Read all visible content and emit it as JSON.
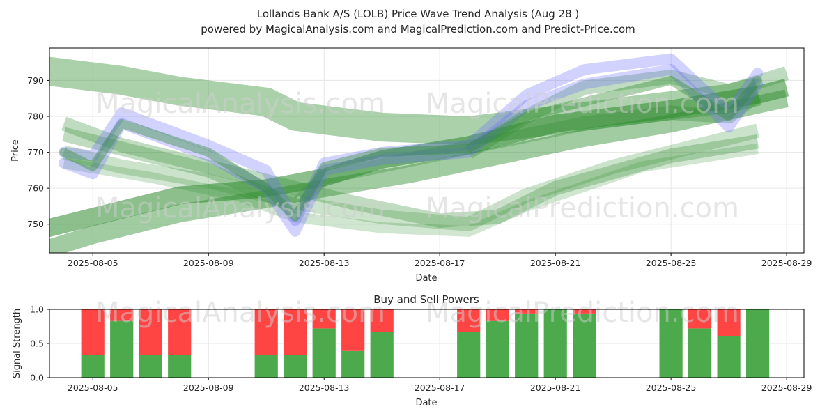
{
  "title_line1": "Lollands Bank A/S (LOLB) Price Wave Trend Analysis (Aug 28 )",
  "title_line2": "powered by MagicalAnalysis.com and MagicalPrediction.com and Predict-Price.com",
  "watermarks": [
    "MagicalAnalysis.com",
    "MagicalPrediction.com"
  ],
  "colors": {
    "buy": "#4caa4c",
    "sell": "#ff4444",
    "wave_green": "#2e8b2e",
    "wave_blue": "#6a6aff",
    "grid": "#e6e6e6"
  },
  "chart_data": [
    {
      "type": "area",
      "name": "price-wave",
      "xlabel": "Date",
      "ylabel": "Price",
      "xlim": [
        "2025-08-03.5",
        "2025-08-29.6"
      ],
      "xticks": [
        "2025-08-05",
        "2025-08-09",
        "2025-08-13",
        "2025-08-17",
        "2025-08-21",
        "2025-08-25",
        "2025-08-29"
      ],
      "ylim": [
        742,
        799
      ],
      "yticks": [
        750,
        760,
        770,
        780,
        790
      ],
      "grid": true,
      "bands": [
        {
          "color": "green",
          "x": [
            "2025-08-03",
            "2025-08-05",
            "2025-08-08",
            "2025-08-11",
            "2025-08-13",
            "2025-08-15",
            "2025-08-18",
            "2025-08-21",
            "2025-08-25",
            "2025-08-28",
            "2025-08-29"
          ],
          "y": [
            748,
            752,
            758,
            760,
            763,
            768,
            772,
            778,
            782,
            786,
            788
          ],
          "width": 5,
          "alpha": 0.55
        },
        {
          "color": "green",
          "x": [
            "2025-08-03",
            "2025-08-05",
            "2025-08-08",
            "2025-08-11",
            "2025-08-13",
            "2025-08-16",
            "2025-08-19",
            "2025-08-22",
            "2025-08-25",
            "2025-08-29"
          ],
          "y": [
            742,
            747,
            753,
            757,
            760,
            764,
            769,
            774,
            778,
            785
          ],
          "width": 5,
          "alpha": 0.45
        },
        {
          "color": "green",
          "x": [
            "2025-08-03",
            "2025-08-06",
            "2025-08-08",
            "2025-08-11",
            "2025-08-12",
            "2025-08-13",
            "2025-08-15",
            "2025-08-18",
            "2025-08-21",
            "2025-08-24",
            "2025-08-27",
            "2025-08-28"
          ],
          "y": [
            793,
            790,
            787,
            784,
            780,
            779,
            777,
            776,
            779,
            782,
            785,
            787
          ],
          "width": 8,
          "alpha": 0.4
        },
        {
          "color": "green",
          "x": [
            "2025-08-04",
            "2025-08-06",
            "2025-08-09",
            "2025-08-12",
            "2025-08-14",
            "2025-08-17",
            "2025-08-19",
            "2025-08-21",
            "2025-08-25",
            "2025-08-28"
          ],
          "y": [
            778,
            772,
            766,
            760,
            756,
            751,
            752,
            760,
            769,
            773
          ],
          "width": 4,
          "alpha": 0.3
        },
        {
          "color": "green",
          "x": [
            "2025-08-04",
            "2025-08-06",
            "2025-08-09",
            "2025-08-12",
            "2025-08-15",
            "2025-08-18",
            "2025-08-20",
            "2025-08-23",
            "2025-08-26",
            "2025-08-28"
          ],
          "y": [
            770,
            766,
            762,
            756,
            752,
            750,
            758,
            766,
            772,
            776
          ],
          "width": 4,
          "alpha": 0.25
        },
        {
          "color": "green",
          "x": [
            "2025-08-04",
            "2025-08-07",
            "2025-08-10",
            "2025-08-12",
            "2025-08-15",
            "2025-08-18",
            "2025-08-20",
            "2025-08-24",
            "2025-08-28"
          ],
          "y": [
            767,
            763,
            758,
            752,
            749,
            748,
            755,
            766,
            771
          ],
          "width": 3,
          "alpha": 0.22
        },
        {
          "color": "green",
          "x": [
            "2025-08-04",
            "2025-08-06",
            "2025-08-09",
            "2025-08-12",
            "2025-08-13",
            "2025-08-16",
            "2025-08-19",
            "2025-08-22",
            "2025-08-25",
            "2025-08-27",
            "2025-08-28"
          ],
          "y": [
            775,
            771,
            765,
            755,
            763,
            768,
            773,
            778,
            781,
            780,
            786
          ],
          "width": 4,
          "alpha": 0.3
        },
        {
          "color": "green",
          "x": [
            "2025-08-18",
            "2025-08-20",
            "2025-08-22",
            "2025-08-25",
            "2025-08-27",
            "2025-08-29"
          ],
          "y": [
            770,
            780,
            788,
            791,
            787,
            792
          ],
          "width": 4,
          "alpha": 0.3
        }
      ],
      "lines": [
        {
          "color": "blue",
          "x": [
            "2025-08-04",
            "2025-08-05",
            "2025-08-06",
            "2025-08-09",
            "2025-08-11",
            "2025-08-12",
            "2025-08-13",
            "2025-08-15",
            "2025-08-18",
            "2025-08-20",
            "2025-08-22",
            "2025-08-25",
            "2025-08-27",
            "2025-08-28"
          ],
          "y": [
            770,
            769,
            781,
            772,
            765,
            751,
            767,
            770,
            772,
            786,
            793,
            796,
            781,
            792
          ],
          "width": 3,
          "alpha": 0.3
        },
        {
          "color": "blue",
          "x": [
            "2025-08-04",
            "2025-08-05",
            "2025-08-06",
            "2025-08-09",
            "2025-08-11",
            "2025-08-12",
            "2025-08-13",
            "2025-08-15",
            "2025-08-18",
            "2025-08-20",
            "2025-08-22",
            "2025-08-25",
            "2025-08-27",
            "2025-08-28"
          ],
          "y": [
            767,
            764,
            778,
            769,
            760,
            748,
            765,
            768,
            770,
            783,
            789,
            793,
            777,
            789
          ],
          "width": 3,
          "alpha": 0.3
        },
        {
          "color": "green",
          "x": [
            "2025-08-04",
            "2025-08-05",
            "2025-08-06",
            "2025-08-09",
            "2025-08-11",
            "2025-08-12",
            "2025-08-13",
            "2025-08-15",
            "2025-08-18",
            "2025-08-20",
            "2025-08-22",
            "2025-08-25",
            "2025-08-27",
            "2025-08-28"
          ],
          "y": [
            770,
            766,
            778,
            770,
            760,
            752,
            766,
            770,
            771,
            780,
            784,
            790,
            780,
            790
          ],
          "width": 2.5,
          "alpha": 0.4
        }
      ]
    },
    {
      "type": "bar",
      "name": "buy-sell-powers",
      "title": "Buy and Sell Powers",
      "xlabel": "Date",
      "ylabel": "Signal Strength",
      "ylim": [
        0,
        1
      ],
      "yticks": [
        0.0,
        0.5,
        1.0
      ],
      "ytick_labels": [
        "0.0",
        "0.5",
        "1.0"
      ],
      "xticks": [
        "2025-08-05",
        "2025-08-09",
        "2025-08-13",
        "2025-08-17",
        "2025-08-21",
        "2025-08-25",
        "2025-08-29"
      ],
      "bars": [
        {
          "date": "2025-08-05",
          "buy": 0.33
        },
        {
          "date": "2025-08-06",
          "buy": 0.83
        },
        {
          "date": "2025-08-07",
          "buy": 0.33
        },
        {
          "date": "2025-08-08",
          "buy": 0.33
        },
        {
          "date": "2025-08-11",
          "buy": 0.33
        },
        {
          "date": "2025-08-12",
          "buy": 0.33
        },
        {
          "date": "2025-08-13",
          "buy": 0.72
        },
        {
          "date": "2025-08-14",
          "buy": 0.39
        },
        {
          "date": "2025-08-15",
          "buy": 0.67
        },
        {
          "date": "2025-08-18",
          "buy": 0.67
        },
        {
          "date": "2025-08-19",
          "buy": 0.83
        },
        {
          "date": "2025-08-20",
          "buy": 0.94
        },
        {
          "date": "2025-08-21",
          "buy": 1.0
        },
        {
          "date": "2025-08-22",
          "buy": 0.94
        },
        {
          "date": "2025-08-25",
          "buy": 1.0
        },
        {
          "date": "2025-08-26",
          "buy": 0.72
        },
        {
          "date": "2025-08-27",
          "buy": 0.61
        },
        {
          "date": "2025-08-28",
          "buy": 1.0
        }
      ]
    }
  ]
}
